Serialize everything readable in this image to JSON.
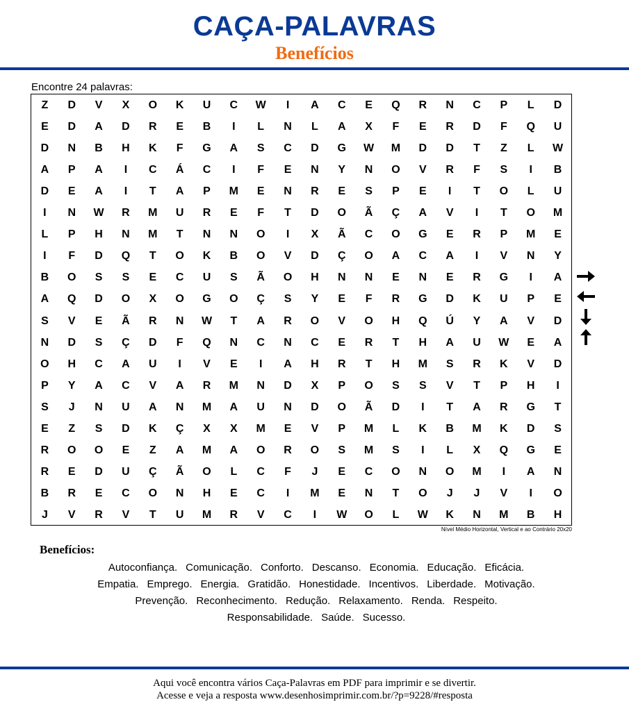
{
  "header": {
    "title": "CAÇA-PALAVRAS",
    "subtitle": "Benefícios"
  },
  "instructions": "Encontre 24 palavras:",
  "grid": [
    "ZDVXOKUCWIACEQRNCPLD",
    "EDADREBILNLAXFERDFQU",
    "DNBHKFGASCDGWMDDTZLW",
    "APAICÁCIFENYNOVRFSIB",
    "DEAITAPMENRESPEITOLU",
    "INWRMUREFTDOÃÇAVITOM",
    "LPHNMTNNOIXÃCOGERPME",
    "IFDQTOKBOVDÇOACAIVNY",
    "BOSSECUSÃOHNNENERGIA",
    "AQDOXOGOÇSYEFRGDKUPE",
    "SVEÃRNWTAROVOHQÚYAVD",
    "NDSÇDFQNCNCERTHAUWEA",
    "OHCAUIVEIAHRTHMSRKVD",
    "PYACVARMNDXPOSSVTPHI",
    "SJNUANMAUNDOÃDITARGT",
    "EZSDKÇXXMEVPMLKBMKDS",
    "ROOEZAMAOROSMSILXQGE",
    "REDUÇÃOLCFJECONOMIAN",
    "BRECONHECIMENTOJJVIO",
    "JVRVTUMRVCIWOLWKNMBH"
  ],
  "level_note": "Nível Médio Horizontal, Vertical e ao Contrário 20x20",
  "direction_icons": [
    "arrow-right-icon",
    "arrow-left-icon",
    "arrow-down-icon",
    "arrow-up-icon"
  ],
  "word_list": {
    "title": "Benefícios:",
    "lines": [
      [
        "Autoconfiança.",
        "Comunicação.",
        "Conforto.",
        "Descanso.",
        "Economia.",
        "Educação.",
        "Eficácia."
      ],
      [
        "Empatia.",
        "Emprego.",
        "Energia.",
        "Gratidão.",
        "Honestidade.",
        "Incentivos.",
        "Liberdade.",
        "Motivação."
      ],
      [
        "Prevenção.",
        "Reconhecimento.",
        "Redução.",
        "Relaxamento.",
        "Renda.",
        "Respeito."
      ],
      [
        "Responsabilidade.",
        "Saúde.",
        "Sucesso."
      ]
    ]
  },
  "footer": {
    "line1": "Aqui você encontra vários Caça-Palavras em PDF para imprimir e se divertir.",
    "line2": "Acesse e veja a resposta  www.desenhosimprimir.com.br/?p=9228/#resposta"
  },
  "colors": {
    "brand_blue": "#0a3a96",
    "accent_orange": "#f26a12"
  }
}
